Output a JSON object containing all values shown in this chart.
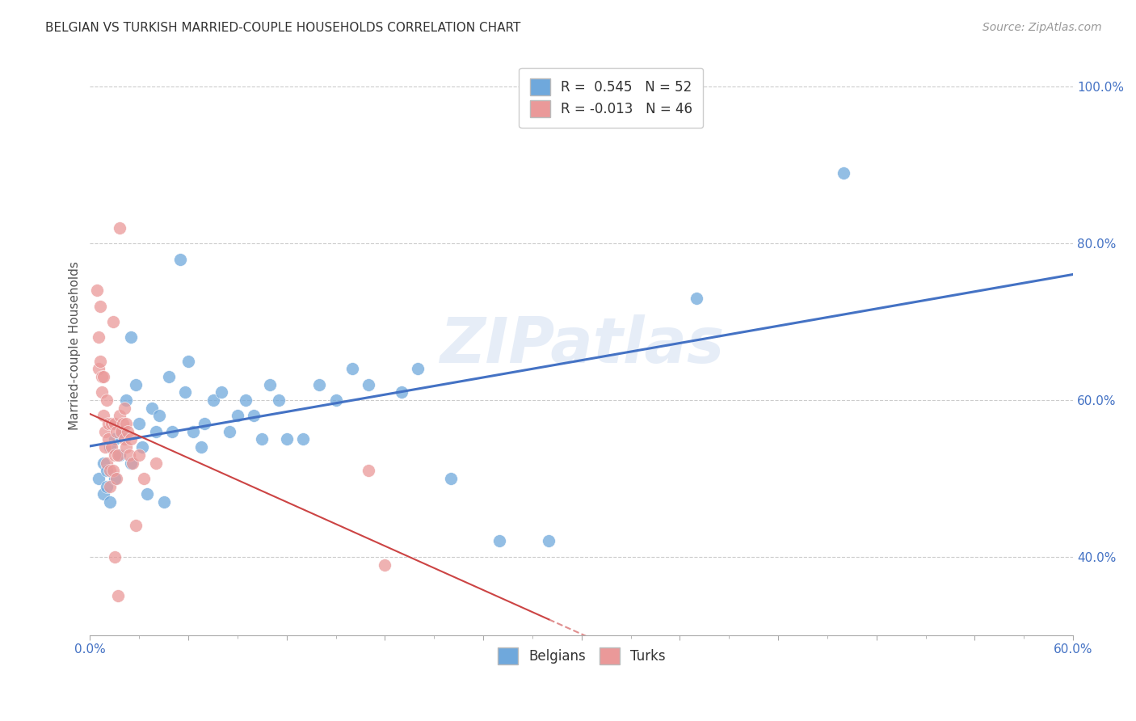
{
  "title": "BELGIAN VS TURKISH MARRIED-COUPLE HOUSEHOLDS CORRELATION CHART",
  "source": "Source: ZipAtlas.com",
  "ylabel_label": "Married-couple Households",
  "x_min": 0.0,
  "x_max": 0.6,
  "y_min": 0.3,
  "y_max": 1.04,
  "x_ticks": [
    0.0,
    0.06,
    0.12,
    0.18,
    0.24,
    0.3,
    0.36,
    0.42,
    0.48,
    0.54,
    0.6
  ],
  "x_tick_labels": [
    "0.0%",
    "",
    "",
    "",
    "",
    "",
    "",
    "",
    "",
    "",
    "60.0%"
  ],
  "y_ticks": [
    0.4,
    0.6,
    0.8,
    1.0
  ],
  "y_tick_labels": [
    "40.0%",
    "60.0%",
    "80.0%",
    "100.0%"
  ],
  "belgian_color": "#6fa8dc",
  "turkish_color": "#ea9999",
  "belgian_line_color": "#4472c4",
  "turkish_line_color": "#cc4444",
  "belgian_R": 0.545,
  "belgian_N": 52,
  "turkish_R": -0.013,
  "turkish_N": 46,
  "watermark": "ZIPatlas",
  "background_color": "#ffffff",
  "grid_color": "#cccccc",
  "belgian_dots": [
    [
      0.005,
      0.5
    ],
    [
      0.008,
      0.52
    ],
    [
      0.008,
      0.48
    ],
    [
      0.01,
      0.51
    ],
    [
      0.01,
      0.49
    ],
    [
      0.012,
      0.54
    ],
    [
      0.012,
      0.47
    ],
    [
      0.015,
      0.55
    ],
    [
      0.015,
      0.5
    ],
    [
      0.018,
      0.53
    ],
    [
      0.02,
      0.56
    ],
    [
      0.022,
      0.6
    ],
    [
      0.025,
      0.68
    ],
    [
      0.025,
      0.52
    ],
    [
      0.028,
      0.62
    ],
    [
      0.03,
      0.57
    ],
    [
      0.032,
      0.54
    ],
    [
      0.035,
      0.48
    ],
    [
      0.038,
      0.59
    ],
    [
      0.04,
      0.56
    ],
    [
      0.042,
      0.58
    ],
    [
      0.045,
      0.47
    ],
    [
      0.048,
      0.63
    ],
    [
      0.05,
      0.56
    ],
    [
      0.055,
      0.78
    ],
    [
      0.058,
      0.61
    ],
    [
      0.06,
      0.65
    ],
    [
      0.063,
      0.56
    ],
    [
      0.068,
      0.54
    ],
    [
      0.07,
      0.57
    ],
    [
      0.075,
      0.6
    ],
    [
      0.08,
      0.61
    ],
    [
      0.085,
      0.56
    ],
    [
      0.09,
      0.58
    ],
    [
      0.095,
      0.6
    ],
    [
      0.1,
      0.58
    ],
    [
      0.105,
      0.55
    ],
    [
      0.11,
      0.62
    ],
    [
      0.115,
      0.6
    ],
    [
      0.12,
      0.55
    ],
    [
      0.13,
      0.55
    ],
    [
      0.14,
      0.62
    ],
    [
      0.15,
      0.6
    ],
    [
      0.16,
      0.64
    ],
    [
      0.17,
      0.62
    ],
    [
      0.19,
      0.61
    ],
    [
      0.2,
      0.64
    ],
    [
      0.22,
      0.5
    ],
    [
      0.25,
      0.42
    ],
    [
      0.28,
      0.42
    ],
    [
      0.37,
      0.73
    ],
    [
      0.46,
      0.89
    ]
  ],
  "turkish_dots": [
    [
      0.004,
      0.74
    ],
    [
      0.005,
      0.68
    ],
    [
      0.005,
      0.64
    ],
    [
      0.006,
      0.72
    ],
    [
      0.006,
      0.65
    ],
    [
      0.007,
      0.63
    ],
    [
      0.007,
      0.61
    ],
    [
      0.008,
      0.63
    ],
    [
      0.008,
      0.58
    ],
    [
      0.009,
      0.56
    ],
    [
      0.009,
      0.54
    ],
    [
      0.01,
      0.52
    ],
    [
      0.01,
      0.6
    ],
    [
      0.011,
      0.57
    ],
    [
      0.011,
      0.55
    ],
    [
      0.012,
      0.51
    ],
    [
      0.012,
      0.49
    ],
    [
      0.013,
      0.57
    ],
    [
      0.013,
      0.54
    ],
    [
      0.014,
      0.51
    ],
    [
      0.014,
      0.7
    ],
    [
      0.015,
      0.57
    ],
    [
      0.015,
      0.53
    ],
    [
      0.016,
      0.5
    ],
    [
      0.016,
      0.56
    ],
    [
      0.017,
      0.53
    ],
    [
      0.018,
      0.82
    ],
    [
      0.018,
      0.58
    ],
    [
      0.019,
      0.56
    ],
    [
      0.02,
      0.57
    ],
    [
      0.021,
      0.59
    ],
    [
      0.021,
      0.55
    ],
    [
      0.022,
      0.57
    ],
    [
      0.022,
      0.54
    ],
    [
      0.023,
      0.56
    ],
    [
      0.024,
      0.53
    ],
    [
      0.025,
      0.55
    ],
    [
      0.026,
      0.52
    ],
    [
      0.015,
      0.4
    ],
    [
      0.028,
      0.44
    ],
    [
      0.03,
      0.53
    ],
    [
      0.033,
      0.5
    ],
    [
      0.04,
      0.52
    ],
    [
      0.017,
      0.35
    ],
    [
      0.18,
      0.39
    ],
    [
      0.17,
      0.51
    ]
  ]
}
